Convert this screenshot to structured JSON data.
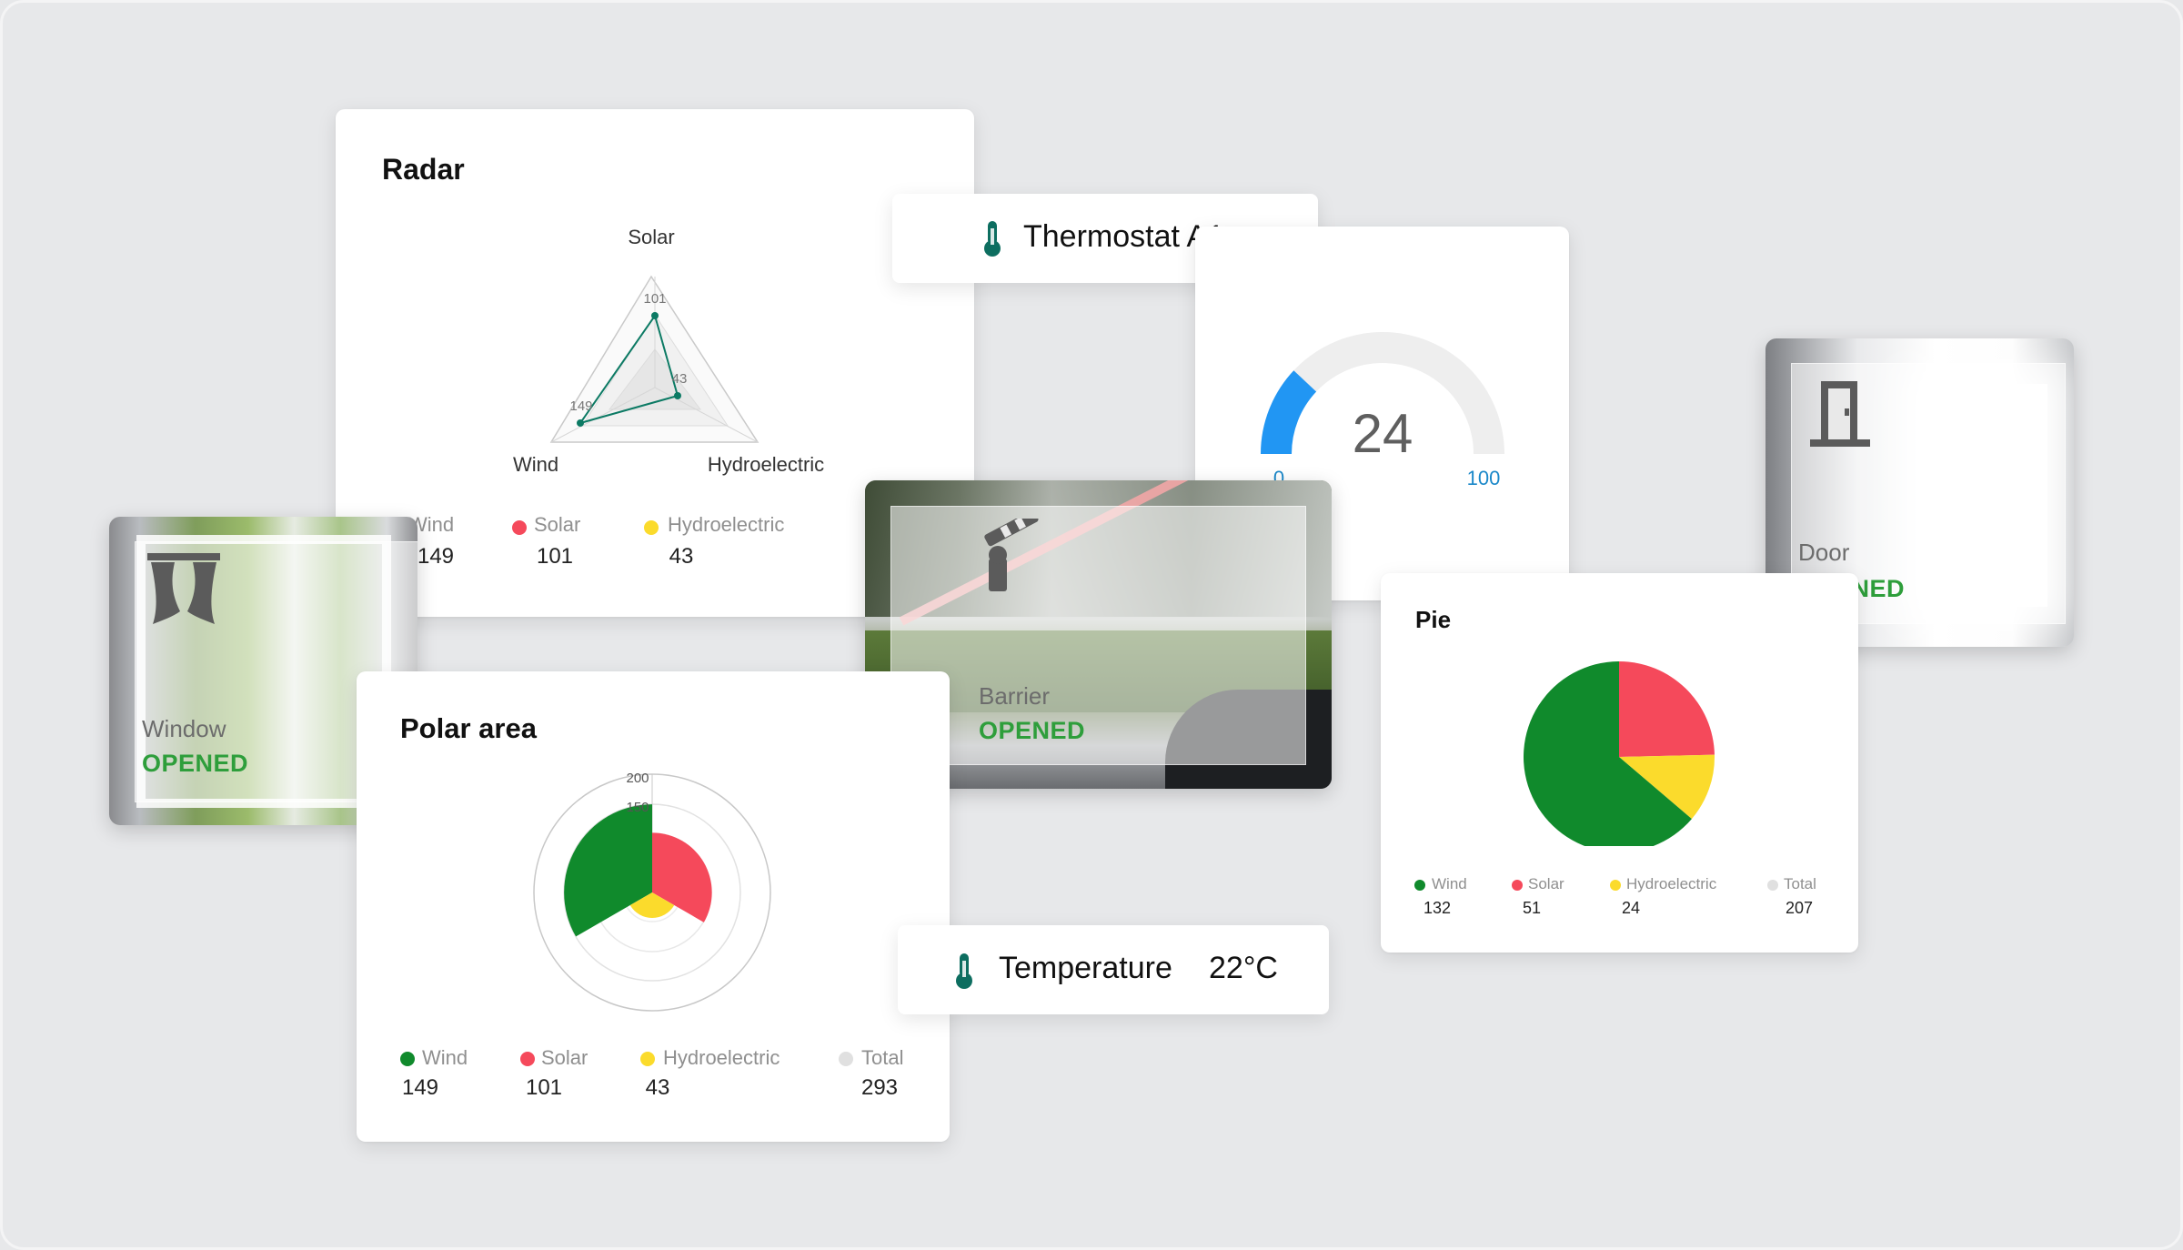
{
  "radar_card": {
    "title": "Radar",
    "axes": [
      "Solar",
      "Hydroelectric",
      "Wind"
    ],
    "point_labels": {
      "solar": "101",
      "hydro": "43",
      "wind": "149"
    },
    "legend": [
      {
        "label": "Wind",
        "value": "149",
        "color": "#108a2c"
      },
      {
        "label": "Solar",
        "value": "101",
        "color": "#f5495b"
      },
      {
        "label": "Hydroelectric",
        "value": "43",
        "color": "#fbdb2c"
      }
    ]
  },
  "thermostat": {
    "title": "Thermostat A1",
    "icon": "thermometer-icon"
  },
  "gauge": {
    "value": "24",
    "min": "0",
    "max": "100",
    "value_num": 24,
    "min_num": 0,
    "max_num": 100,
    "color": "#2196f3"
  },
  "door": {
    "name": "Door",
    "status": "OPENED",
    "icon": "door-icon"
  },
  "window": {
    "name": "Window",
    "status": "OPENED",
    "icon": "curtains-icon"
  },
  "barrier": {
    "name": "Barrier",
    "status": "OPENED",
    "icon": "barrier-icon"
  },
  "pie_card": {
    "title": "Pie",
    "legend": [
      {
        "label": "Wind",
        "value": "132",
        "color": "#108a2c"
      },
      {
        "label": "Solar",
        "value": "51",
        "color": "#f5495b"
      },
      {
        "label": "Hydroelectric",
        "value": "24",
        "color": "#fbdb2c"
      },
      {
        "label": "Total",
        "value": "207",
        "color": "#e0e0e0"
      }
    ]
  },
  "polar_card": {
    "title": "Polar area",
    "scale_labels": [
      "200",
      "150"
    ],
    "legend": [
      {
        "label": "Wind",
        "value": "149",
        "color": "#108a2c"
      },
      {
        "label": "Solar",
        "value": "101",
        "color": "#f5495b"
      },
      {
        "label": "Hydroelectric",
        "value": "43",
        "color": "#fbdb2c"
      },
      {
        "label": "Total",
        "value": "293",
        "color": "#e0e0e0"
      }
    ]
  },
  "temperature": {
    "label": "Temperature",
    "value": "22°C",
    "icon": "thermometer-icon"
  },
  "chart_data": [
    {
      "type": "radar",
      "title": "Radar",
      "categories": [
        "Solar",
        "Hydroelectric",
        "Wind"
      ],
      "values": [
        101,
        43,
        149
      ]
    },
    {
      "type": "pie",
      "title": "Pie",
      "categories": [
        "Wind",
        "Solar",
        "Hydroelectric"
      ],
      "values": [
        132,
        51,
        24
      ],
      "total": 207
    },
    {
      "type": "polar_area",
      "title": "Polar area",
      "categories": [
        "Wind",
        "Solar",
        "Hydroelectric"
      ],
      "values": [
        149,
        101,
        43
      ],
      "total": 293,
      "rmax": 200
    }
  ]
}
